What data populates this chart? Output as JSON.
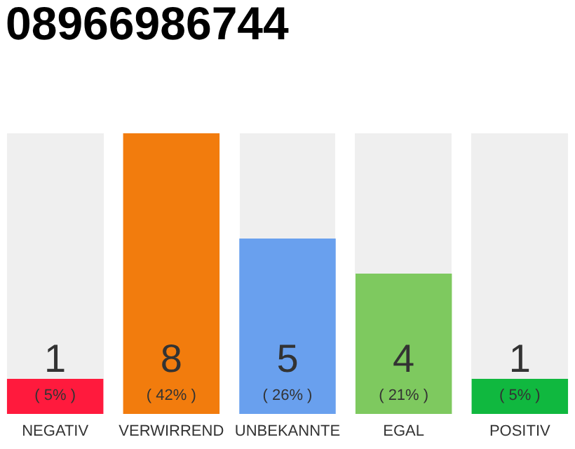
{
  "chart_data": {
    "type": "bar",
    "title": "08966986744",
    "categories": [
      "NEGATIV",
      "VERWIRREND",
      "UNBEKANNTE",
      "EGAL",
      "POSITIV"
    ],
    "values": [
      1,
      8,
      5,
      4,
      1
    ],
    "colors": [
      "#ff1a3d",
      "#f27c0d",
      "#69a0ee",
      "#7ec95f",
      "#10b83f"
    ],
    "ylim": [
      0,
      8
    ],
    "tick_labels": "x",
    "data_labels": true,
    "annotations": [
      "( 5% )",
      "( 42% )",
      "( 26% )",
      "( 21% )",
      "( 5% )"
    ]
  }
}
